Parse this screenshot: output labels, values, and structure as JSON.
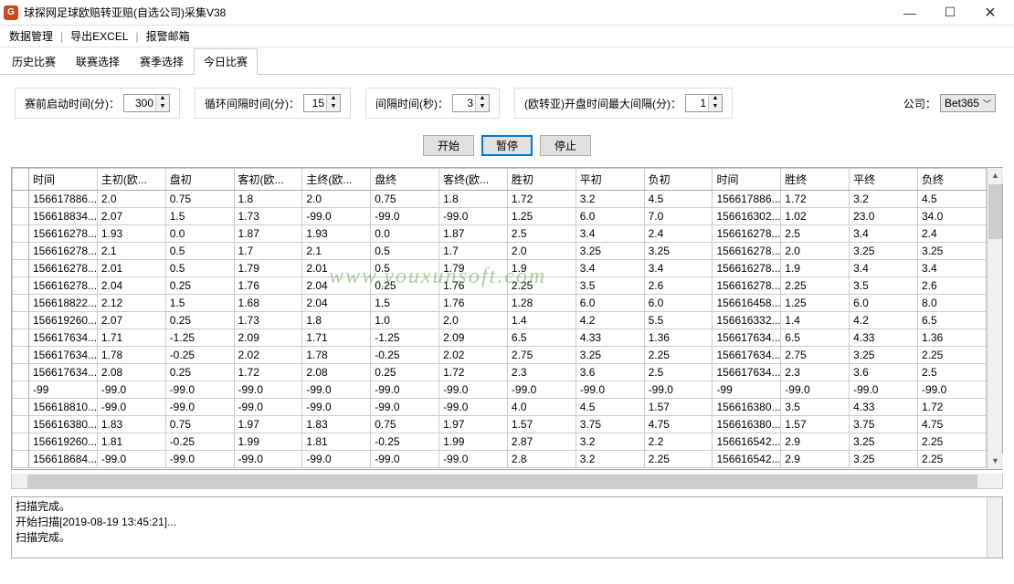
{
  "window": {
    "title": "球探网足球欧赔转亚赔(自选公司)采集V38",
    "icon_letter": "G"
  },
  "menubar": {
    "items": [
      "数据管理",
      "导出EXCEL",
      "报警邮箱"
    ]
  },
  "tabs": {
    "items": [
      "历史比赛",
      "联赛选择",
      "赛季选择",
      "今日比赛"
    ],
    "active_index": 3
  },
  "controls": {
    "startup": {
      "label": "赛前启动时间(分)：",
      "value": "300"
    },
    "loop": {
      "label": "循环间隔时间(分)：",
      "value": "15"
    },
    "interval": {
      "label": "间隔时间(秒)：",
      "value": "3"
    },
    "maxgap": {
      "label": "(欧转亚)开盘时间最大间隔(分)：",
      "value": "1"
    },
    "company": {
      "label": "公司：",
      "value": "Bet365"
    }
  },
  "buttons": {
    "start": "开始",
    "pause": "暂停",
    "stop": "停止"
  },
  "table": {
    "columns": [
      "时间",
      "主初(欧...",
      "盘初",
      "客初(欧...",
      "主终(欧...",
      "盘终",
      "客终(欧...",
      "胜初",
      "平初",
      "负初",
      "时间",
      "胜终",
      "平终",
      "负终"
    ],
    "rows": [
      [
        "156617886...",
        "2.0",
        "0.75",
        "1.8",
        "2.0",
        "0.75",
        "1.8",
        "1.72",
        "3.2",
        "4.5",
        "156617886...",
        "1.72",
        "3.2",
        "4.5"
      ],
      [
        "156618834...",
        "2.07",
        "1.5",
        "1.73",
        "-99.0",
        "-99.0",
        "-99.0",
        "1.25",
        "6.0",
        "7.0",
        "156616302...",
        "1.02",
        "23.0",
        "34.0"
      ],
      [
        "156616278...",
        "1.93",
        "0.0",
        "1.87",
        "1.93",
        "0.0",
        "1.87",
        "2.5",
        "3.4",
        "2.4",
        "156616278...",
        "2.5",
        "3.4",
        "2.4"
      ],
      [
        "156616278...",
        "2.1",
        "0.5",
        "1.7",
        "2.1",
        "0.5",
        "1.7",
        "2.0",
        "3.25",
        "3.25",
        "156616278...",
        "2.0",
        "3.25",
        "3.25"
      ],
      [
        "156616278...",
        "2.01",
        "0.5",
        "1.79",
        "2.01",
        "0.5",
        "1.79",
        "1.9",
        "3.4",
        "3.4",
        "156616278...",
        "1.9",
        "3.4",
        "3.4"
      ],
      [
        "156616278...",
        "2.04",
        "0.25",
        "1.76",
        "2.04",
        "0.25",
        "1.76",
        "2.25",
        "3.5",
        "2.6",
        "156616278...",
        "2.25",
        "3.5",
        "2.6"
      ],
      [
        "156618822...",
        "2.12",
        "1.5",
        "1.68",
        "2.04",
        "1.5",
        "1.76",
        "1.28",
        "6.0",
        "6.0",
        "156616458...",
        "1.25",
        "6.0",
        "8.0"
      ],
      [
        "156619260...",
        "2.07",
        "0.25",
        "1.73",
        "1.8",
        "1.0",
        "2.0",
        "1.4",
        "4.2",
        "5.5",
        "156616332...",
        "1.4",
        "4.2",
        "6.5"
      ],
      [
        "156617634...",
        "1.71",
        "-1.25",
        "2.09",
        "1.71",
        "-1.25",
        "2.09",
        "6.5",
        "4.33",
        "1.36",
        "156617634...",
        "6.5",
        "4.33",
        "1.36"
      ],
      [
        "156617634...",
        "1.78",
        "-0.25",
        "2.02",
        "1.78",
        "-0.25",
        "2.02",
        "2.75",
        "3.25",
        "2.25",
        "156617634...",
        "2.75",
        "3.25",
        "2.25"
      ],
      [
        "156617634...",
        "2.08",
        "0.25",
        "1.72",
        "2.08",
        "0.25",
        "1.72",
        "2.3",
        "3.6",
        "2.5",
        "156617634...",
        "2.3",
        "3.6",
        "2.5"
      ],
      [
        "-99",
        "-99.0",
        "-99.0",
        "-99.0",
        "-99.0",
        "-99.0",
        "-99.0",
        "-99.0",
        "-99.0",
        "-99.0",
        "-99",
        "-99.0",
        "-99.0",
        "-99.0"
      ],
      [
        "156618810...",
        "-99.0",
        "-99.0",
        "-99.0",
        "-99.0",
        "-99.0",
        "-99.0",
        "4.0",
        "4.5",
        "1.57",
        "156616380...",
        "3.5",
        "4.33",
        "1.72"
      ],
      [
        "156616380...",
        "1.83",
        "0.75",
        "1.97",
        "1.83",
        "0.75",
        "1.97",
        "1.57",
        "3.75",
        "4.75",
        "156616380...",
        "1.57",
        "3.75",
        "4.75"
      ],
      [
        "156619260...",
        "1.81",
        "-0.25",
        "1.99",
        "1.81",
        "-0.25",
        "1.99",
        "2.87",
        "3.2",
        "2.2",
        "156616542...",
        "2.9",
        "3.25",
        "2.25"
      ],
      [
        "156618684...",
        "-99.0",
        "-99.0",
        "-99.0",
        "-99.0",
        "-99.0",
        "-99.0",
        "2.8",
        "3.2",
        "2.25",
        "156616542...",
        "2.9",
        "3.25",
        "2.25"
      ]
    ]
  },
  "log": {
    "lines": [
      "扫描完成。",
      "开始扫描[2019-08-19 13:45:21]...",
      "扫描完成。"
    ]
  },
  "watermark": "www.youxunsoft.com"
}
